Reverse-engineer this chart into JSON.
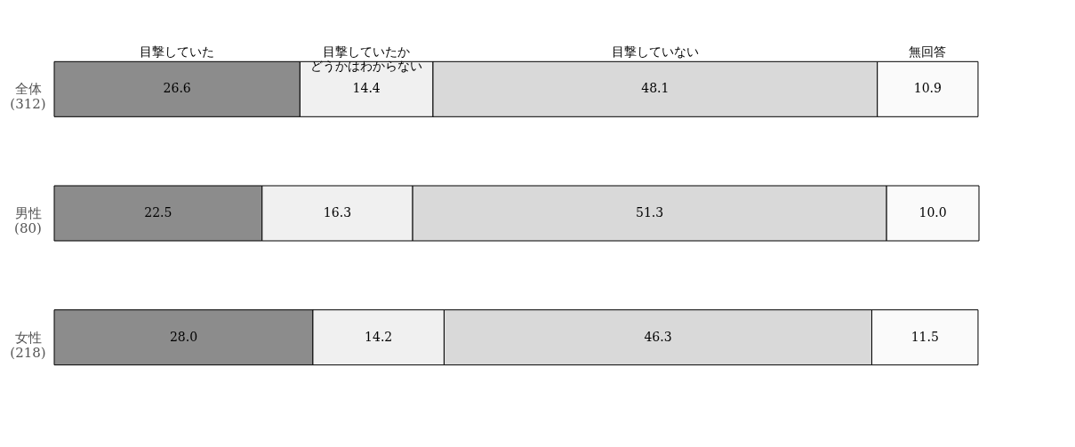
{
  "chart_data": {
    "type": "bar",
    "orientation": "horizontal",
    "stacked": true,
    "legend": false,
    "grid": false,
    "categories": [
      "全体\n(312)",
      "男性\n(80)",
      "女性\n(218)"
    ],
    "series": [
      {
        "name": "目撃していた",
        "color": "#8c8c8c",
        "values": [
          26.6,
          22.5,
          28.0
        ],
        "value_labels": [
          "26.6",
          "22.5",
          "28.0"
        ]
      },
      {
        "name": "目撃していたかどうかはわからない",
        "color": "#f0f0f0",
        "values": [
          14.4,
          16.3,
          14.2
        ],
        "value_labels": [
          "14.4",
          "16.3",
          "14.2"
        ]
      },
      {
        "name": "目撃していない",
        "color": "#d9d9d9",
        "values": [
          48.1,
          51.3,
          46.3
        ],
        "value_labels": [
          "48.1",
          "51.3",
          "46.3"
        ]
      },
      {
        "name": "無回答",
        "color": "#fafafa",
        "values": [
          10.9,
          10.0,
          11.5
        ],
        "value_labels": [
          "10.9",
          "10.0",
          "11.5"
        ]
      }
    ]
  }
}
